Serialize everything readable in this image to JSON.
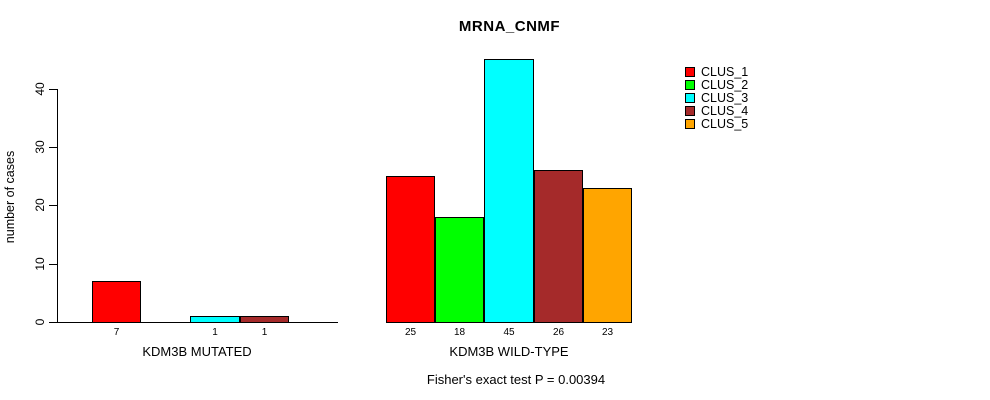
{
  "chart_data": {
    "type": "bar",
    "title": "MRNA_CNMF",
    "ylabel": "number of cases",
    "xlabel": "",
    "ylim": [
      0,
      45
    ],
    "yticks": [
      0,
      10,
      20,
      30,
      40
    ],
    "grid": false,
    "legend_position": "right",
    "legend": [
      {
        "label": "CLUS_1",
        "color": "#ff0000"
      },
      {
        "label": "CLUS_2",
        "color": "#00ff00"
      },
      {
        "label": "CLUS_3",
        "color": "#00ffff"
      },
      {
        "label": "CLUS_4",
        "color": "#a52a2a"
      },
      {
        "label": "CLUS_5",
        "color": "#ffa500"
      }
    ],
    "groups": [
      {
        "label": "KDM3B MUTATED",
        "values": [
          7,
          0,
          1,
          1,
          0
        ]
      },
      {
        "label": "KDM3B WILD-TYPE",
        "values": [
          25,
          18,
          45,
          26,
          23
        ]
      }
    ],
    "bar_value_labels_visible": true,
    "footnote": "Fisher's exact test P = 0.00394"
  }
}
